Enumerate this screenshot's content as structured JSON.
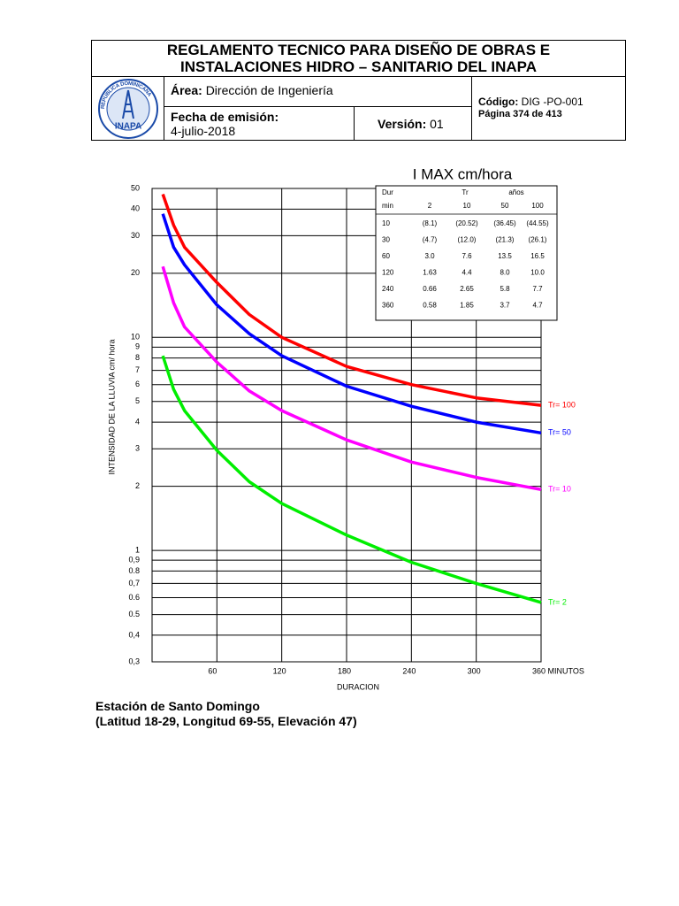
{
  "header": {
    "title_lines": [
      "REGLAMENTO TECNICO PARA DISEÑO DE OBRAS E",
      "INSTALACIONES HIDRO – SANITARIO DEL INAPA"
    ],
    "logo_text": "INAPA",
    "logo_ring": "REPUBLICA DOMINICANA",
    "area_label": "Área:",
    "area": "Dirección de Ingeniería",
    "date_label": "Fecha de emisión:",
    "date": "4-julio-2018",
    "version_label": "Versión:",
    "version": "01",
    "code_label": "Código:",
    "code": "DIG -PO-001",
    "page": "Página 374 de 413"
  },
  "chart_data": {
    "type": "line",
    "title": "I MAX  cm/hora",
    "x_label": "DURACION",
    "y_label": "INTENSIDAD DE LA LLUVIA cm/ hora",
    "x": [
      10,
      20,
      30,
      60,
      90,
      120,
      180,
      240,
      300,
      360
    ],
    "series": [
      {
        "name": "Tr= 100",
        "color": "#ff0000",
        "values": [
          47,
          33.6,
          26.5,
          18.1,
          12.8,
          10,
          7.3,
          6.0,
          5.2,
          4.8
        ]
      },
      {
        "name": "Tr= 50",
        "color": "#0000ff",
        "values": [
          38,
          26.5,
          21.9,
          14.2,
          10.4,
          8.2,
          5.9,
          4.75,
          4.0,
          3.56
        ]
      },
      {
        "name": "Tr= 10",
        "color": "#ff00ff",
        "values": [
          21.5,
          14.5,
          11.2,
          7.65,
          5.6,
          4.53,
          3.3,
          2.6,
          2.2,
          1.93
        ]
      },
      {
        "name": "Tr= 2",
        "color": "#00ee00",
        "values": [
          8.2,
          5.7,
          4.53,
          2.95,
          2.1,
          1.66,
          1.18,
          0.88,
          0.7,
          0.57
        ]
      }
    ],
    "xlim": [
      0,
      360
    ],
    "xticks": [
      60,
      120,
      180,
      240,
      300,
      {
        "value": 360,
        "label": "360 MINUTOS"
      }
    ],
    "ylim": [
      0.3,
      50
    ],
    "log_y": true,
    "grid": true,
    "yticks": [
      50,
      40,
      30,
      20,
      10,
      9,
      8,
      7,
      6,
      5,
      4,
      3,
      2,
      1,
      {
        "value": 0.9,
        "label": "0,9"
      },
      0.8,
      {
        "value": 0.7,
        "label": "0,7"
      },
      0.6,
      0.5,
      {
        "value": 0.4,
        "label": "0,4"
      },
      {
        "value": 0.3,
        "label": "0,3"
      }
    ]
  },
  "table": {
    "header_top": [
      "Dur",
      "Tr",
      "años"
    ],
    "header": [
      "min",
      "2",
      "10",
      "50",
      "100"
    ],
    "rows": [
      [
        "10",
        "(8.1)",
        "(20.52)",
        "(36.45)",
        "(44.55)"
      ],
      [
        "30",
        "(4.7)",
        "(12.0)",
        "(21.3)",
        "(26.1)"
      ],
      [
        "60",
        "3.0",
        "7.6",
        "13.5",
        "16.5"
      ],
      [
        "120",
        "1.63",
        "4.4",
        "8.0",
        "10.0"
      ],
      [
        "240",
        "0.66",
        "2.65",
        "5.8",
        "7.7"
      ],
      [
        "360",
        "0.58",
        "1.85",
        "3.7",
        "4.7"
      ]
    ]
  },
  "footer": {
    "station": "Estación de Santo Domingo",
    "location": "(Latitud 18-29, Longitud 69-55, Elevación 47)"
  }
}
